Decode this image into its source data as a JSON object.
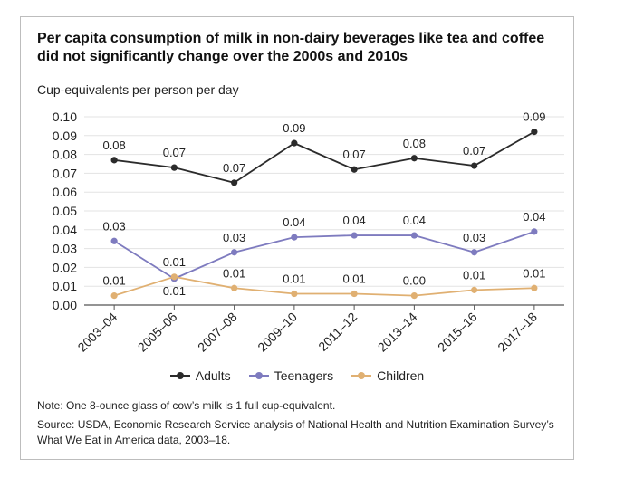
{
  "chart_data": {
    "type": "line",
    "title": "Per capita consumption of milk in non-dairy beverages like tea and coffee did not significantly change over the 2000s and 2010s",
    "subtitle": "Cup-equivalents per person per day",
    "xlabel": "",
    "ylabel": "Cup-equivalents per person per day",
    "categories": [
      "2003–04",
      "2005–06",
      "2007–08",
      "2009–10",
      "2011–12",
      "2013–14",
      "2015–16",
      "2017–18"
    ],
    "ylim": [
      0,
      0.1
    ],
    "yticks": [
      "0.00",
      "0.01",
      "0.02",
      "0.03",
      "0.04",
      "0.05",
      "0.06",
      "0.07",
      "0.08",
      "0.09",
      "0.10"
    ],
    "grid": true,
    "series": [
      {
        "name": "Adults",
        "color": "#2b2b2b",
        "values": [
          0.077,
          0.073,
          0.065,
          0.086,
          0.072,
          0.078,
          0.074,
          0.092
        ],
        "labels": [
          "0.08",
          "0.07",
          "0.07",
          "0.09",
          "0.07",
          "0.08",
          "0.07",
          "0.09"
        ]
      },
      {
        "name": "Teenagers",
        "color": "#7e7bbf",
        "values": [
          0.034,
          0.014,
          0.028,
          0.036,
          0.037,
          0.037,
          0.028,
          0.039
        ],
        "labels": [
          "0.03",
          "0.01",
          "0.03",
          "0.04",
          "0.04",
          "0.04",
          "0.03",
          "0.04"
        ]
      },
      {
        "name": "Children",
        "color": "#e0b072",
        "values": [
          0.005,
          0.015,
          0.009,
          0.006,
          0.006,
          0.005,
          0.008,
          0.009
        ],
        "labels": [
          "0.01",
          "0.01",
          "0.01",
          "0.01",
          "0.01",
          "0.00",
          "0.01",
          "0.01"
        ]
      }
    ],
    "legend_position": "bottom",
    "note": "Note: One 8-ounce glass of cow’s milk is 1 full cup-equivalent.",
    "source": "Source: USDA, Economic Research Service analysis of National Health and Nutrition Examination Survey’s What We Eat in America data, 2003–18."
  }
}
